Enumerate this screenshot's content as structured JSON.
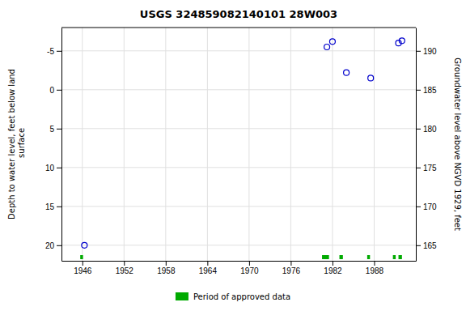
{
  "chart_data": {
    "type": "scatter",
    "title": "USGS 324859082140101 28W003",
    "xlim": [
      1943,
      1994
    ],
    "xticks": [
      1946,
      1952,
      1958,
      1964,
      1970,
      1976,
      1982,
      1988
    ],
    "ylim": [
      22,
      -8
    ],
    "yticks": [
      20,
      15,
      10,
      5,
      0,
      -5
    ],
    "ylabel": "Depth to water level, feet below land\n surface",
    "y2lim": [
      163,
      193
    ],
    "y2ticks": [
      165,
      170,
      175,
      180,
      185,
      190
    ],
    "y2label": "Groundwater level above NGVD 1929, feet",
    "grid": true,
    "legend": "bottom",
    "series": [
      {
        "type": "scatter",
        "marker": "circle",
        "color": "#0000cc",
        "x": [
          1946.3,
          1981.2,
          1982.0,
          1984.0,
          1987.5,
          1991.5,
          1992.0
        ],
        "values": [
          20.0,
          -5.5,
          -6.2,
          -2.2,
          -1.5,
          -6.0,
          -6.3
        ]
      },
      {
        "type": "range",
        "name": "Period of approved data",
        "color": "#00aa00",
        "ranges": [
          [
            1945.7,
            1946.1
          ],
          [
            1980.5,
            1981.5
          ],
          [
            1983.0,
            1983.5
          ],
          [
            1987.0,
            1987.4
          ],
          [
            1990.7,
            1991.1
          ],
          [
            1991.5,
            1992.0
          ]
        ]
      }
    ]
  }
}
